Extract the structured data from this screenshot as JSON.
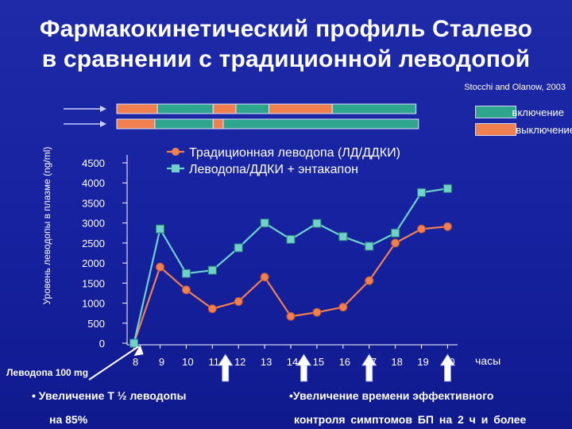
{
  "slide": {
    "title_line1": "Фармакокинетический профиль Сталево",
    "title_line2": "в сравнении с традиционной леводопой",
    "source": "Stocchi and Olanow, 2003",
    "dose_label": "Леводопа 100 mg",
    "bullet_left_line1": "• Увеличение T ½ леводопы",
    "bullet_left_line2": "на 85%",
    "bullet_right_line1": "•Увеличение времени эффективного",
    "bullet_right_line2": "контроля симптомов БП на 2 ч и более"
  },
  "state_legend": {
    "on_label": "включение",
    "off_label": "выключение",
    "on_color": "#2ea58c",
    "off_color": "#f08050"
  },
  "state_bars": [
    {
      "row": "traditional",
      "segments": [
        {
          "state": "off",
          "from": 8.0,
          "to": 9.6
        },
        {
          "state": "on",
          "from": 9.6,
          "to": 11.8
        },
        {
          "state": "off",
          "from": 11.8,
          "to": 12.7
        },
        {
          "state": "on",
          "from": 12.7,
          "to": 14.0
        },
        {
          "state": "off",
          "from": 14.0,
          "to": 16.5
        },
        {
          "state": "on",
          "from": 16.5,
          "to": 19.8
        }
      ]
    },
    {
      "row": "entacapone",
      "segments": [
        {
          "state": "off",
          "from": 8.0,
          "to": 9.5
        },
        {
          "state": "on",
          "from": 9.5,
          "to": 11.8
        },
        {
          "state": "off",
          "from": 11.8,
          "to": 12.2
        },
        {
          "state": "on",
          "from": 12.2,
          "to": 19.9
        }
      ]
    }
  ],
  "chart_data": {
    "type": "line",
    "title": "Фармакокинетический профиль Сталево в сравнении с традиционной леводопой",
    "ylabel": "Уровень леводопы в плазме (ng/ml)",
    "xlabel": "часы",
    "ylim": [
      0,
      4500
    ],
    "yticks": [
      0,
      500,
      1000,
      1500,
      2000,
      2500,
      3000,
      3500,
      4000,
      4500
    ],
    "xlim": [
      7.8,
      20.2
    ],
    "xticks": [
      8,
      9,
      10,
      11,
      12,
      13,
      14,
      15,
      16,
      17,
      18,
      19,
      20
    ],
    "dose_times": [
      8,
      11.5,
      14.5,
      17,
      20
    ],
    "legend_position": "top",
    "series": [
      {
        "name": "Традиционная леводопа (ЛД/ДДКИ)",
        "color": "#f08050",
        "marker": "circle",
        "x": [
          8,
          9,
          10,
          11,
          12,
          13,
          14,
          15,
          16,
          17,
          18,
          19,
          20
        ],
        "values": [
          0,
          1900,
          1330,
          860,
          1040,
          1650,
          670,
          770,
          900,
          1560,
          2500,
          2850,
          2910
        ]
      },
      {
        "name": "Леводопа/ДДКИ + энтакапон",
        "color": "#6fd1c8",
        "marker": "square",
        "x": [
          8,
          9,
          10,
          11,
          12,
          13,
          14,
          15,
          16,
          17,
          18,
          19,
          20
        ],
        "values": [
          0,
          2850,
          1740,
          1820,
          2380,
          3000,
          2590,
          2990,
          2660,
          2420,
          2750,
          3760,
          3860
        ]
      }
    ]
  }
}
